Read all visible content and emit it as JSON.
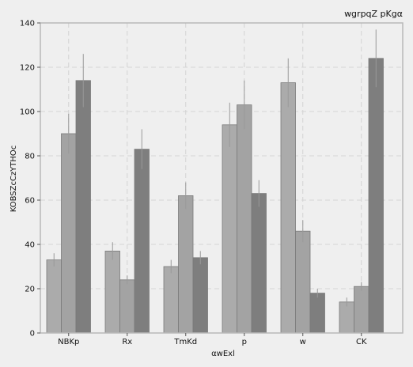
{
  "chart_data": {
    "type": "bar",
    "title": "wgrpqZ pKgα",
    "xlabel": "αwExl",
    "ylabel": "KOBSZcCzYTHOc",
    "categories": [
      "NBKp",
      "Rx",
      "TmKd",
      "p",
      "w",
      "CK"
    ],
    "ylim": [
      0,
      140
    ],
    "yticks": [
      0,
      20,
      40,
      60,
      80,
      100,
      120,
      140
    ],
    "grid": true,
    "legend": "none",
    "series": [
      {
        "color": "#ababab",
        "values": [
          33,
          37,
          30,
          94,
          113,
          14
        ],
        "errors": [
          3,
          4,
          3,
          10,
          11,
          2
        ]
      },
      {
        "color": "#a3a3a3",
        "values": [
          90,
          24,
          62,
          103,
          46,
          21
        ],
        "errors": [
          9,
          2,
          6,
          11,
          5,
          2
        ]
      },
      {
        "color": "#7e7e7e",
        "values": [
          114,
          83,
          34,
          63,
          18,
          124
        ],
        "errors": [
          12,
          9,
          3,
          6,
          2,
          13
        ]
      }
    ]
  },
  "colors": {
    "background": "#efefef",
    "plot_border": "#b8b8b8",
    "grid": "#d4d4d4",
    "bar_edge": "#7a7a7a",
    "error_bar": "#999999"
  }
}
